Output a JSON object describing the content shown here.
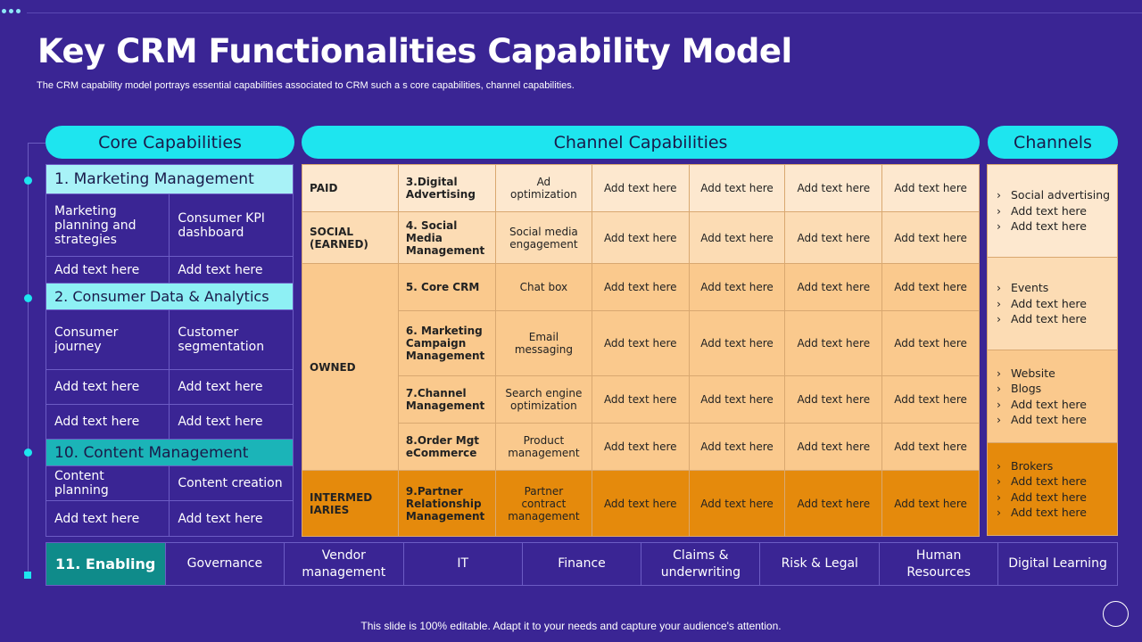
{
  "title": "Key CRM Functionalities Capability Model",
  "subtitle": "The CRM capability model portrays essential capabilities associated to CRM such a s core capabilities, channel capabilities.",
  "headers": {
    "core": "Core Capabilities",
    "channel": "Channel Capabilities",
    "channels": "Channels"
  },
  "core": {
    "marketing": "1. Marketing Management",
    "m1a": "Marketing planning and strategies",
    "m1b": "Consumer KPI dashboard",
    "m2a": "Add text here",
    "m2b": "Add text here",
    "consumer": "2. Consumer Data & Analytics",
    "c1a": "Consumer journey",
    "c1b": "Customer segmentation",
    "c2a": "Add text here",
    "c2b": "Add text here",
    "c3a": "Add text here",
    "c3b": "Add text here",
    "content": "10. Content Management",
    "t1a": "Content planning",
    "t1b": "Content creation",
    "t2a": "Add text here",
    "t2b": "Add text here"
  },
  "channel": {
    "groups": [
      "PAID",
      "SOCIAL (EARNED)",
      "OWNED",
      "INTERMED IARIES"
    ],
    "rows": [
      {
        "name": "3.Digital Advertising",
        "cap": "Ad optimization"
      },
      {
        "name": "4. Social Media Management",
        "cap": "Social media engagement"
      },
      {
        "name": "5. Core CRM",
        "cap": "Chat box"
      },
      {
        "name": "6. Marketing Campaign Management",
        "cap": "Email messaging"
      },
      {
        "name": "7.Channel Management",
        "cap": "Search engine optimization"
      },
      {
        "name": "8.Order Mgt eCommerce",
        "cap": "Product management"
      },
      {
        "name": "9.Partner Relationship Management",
        "cap": "Partner contract management"
      }
    ],
    "placeholder": "Add text here"
  },
  "channels": [
    [
      "Social advertising",
      "Add text here",
      "Add text here"
    ],
    [
      "Events",
      "Add text here",
      "Add text here"
    ],
    [
      "Website",
      "Blogs",
      "Add text here",
      "Add text here"
    ],
    [
      "Brokers",
      "Add text here",
      "Add text here",
      "Add text here"
    ]
  ],
  "enabling": {
    "label": "11. Enabling",
    "items": [
      "Governance",
      "Vendor management",
      "IT",
      "Finance",
      "Claims & underwriting",
      "Risk & Legal",
      "Human Resources",
      "Digital Learning"
    ]
  },
  "footer": "This slide is 100% editable. Adapt it to your needs and capture your audience's attention.",
  "colors": {
    "background": "#3a2594",
    "accent": "#1ee5ef",
    "paid": "#fde8cf",
    "social": "#fcdcb4",
    "owned": "#fac98d",
    "intermediaries": "#e58a0c",
    "enabling": "#0f8b8a"
  }
}
